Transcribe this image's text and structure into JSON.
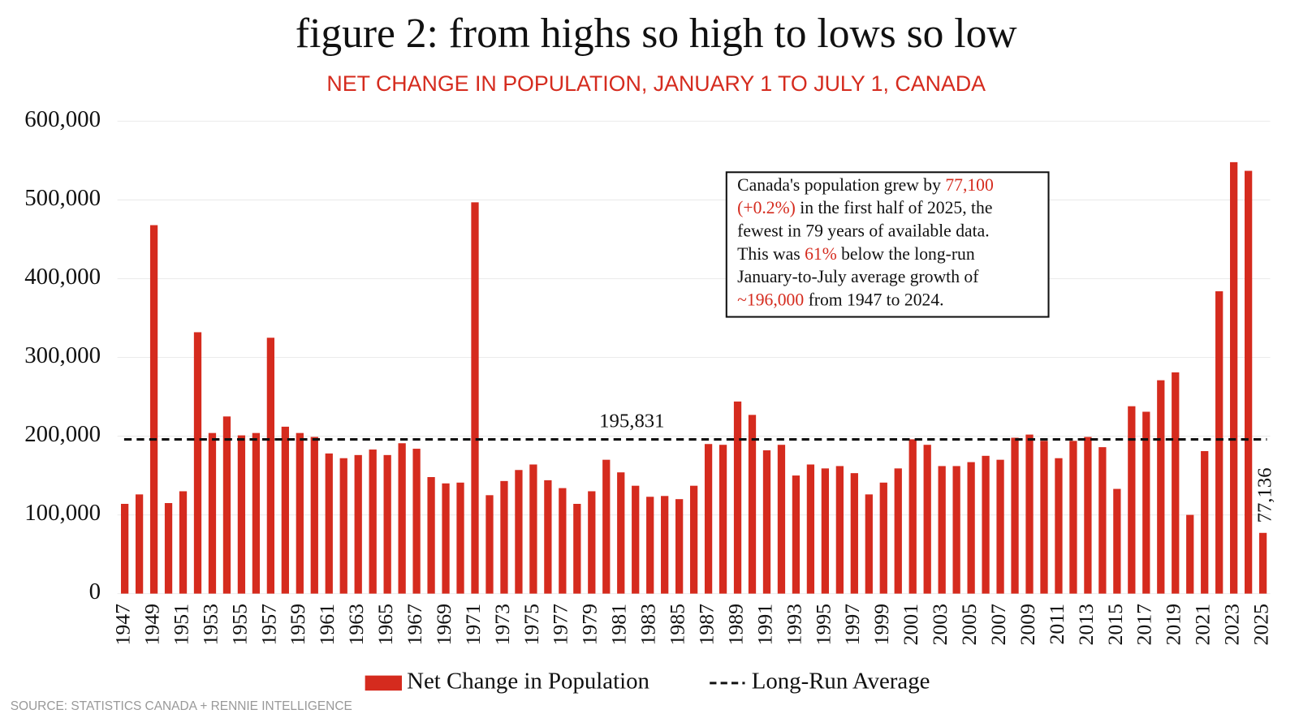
{
  "chart_data": {
    "type": "bar",
    "title": "figure 2: from highs so high to lows so low",
    "subtitle": "NET CHANGE IN POPULATION, JANUARY 1 TO JULY 1, CANADA",
    "source": "SOURCE: STATISTICS CANADA + RENNIE INTELLIGENCE",
    "categories": [
      "1947",
      null,
      "1949",
      null,
      "1951",
      null,
      "1953",
      null,
      "1955",
      null,
      "1957",
      null,
      "1959",
      null,
      "1961",
      null,
      "1963",
      null,
      "1965",
      null,
      "1967",
      null,
      "1969",
      null,
      "1971",
      null,
      "1973",
      null,
      "1975",
      null,
      "1977",
      null,
      "1979",
      null,
      "1981",
      null,
      "1983",
      null,
      "1985",
      null,
      "1987",
      null,
      "1989",
      null,
      "1991",
      null,
      "1993",
      null,
      "1995",
      null,
      "1997",
      null,
      "1999",
      null,
      "2001",
      null,
      "2003",
      null,
      "2005",
      null,
      "2007",
      null,
      "2009",
      null,
      "2011",
      null,
      "2013",
      null,
      "2015",
      null,
      "2017",
      null,
      "2019",
      null,
      "2021",
      null,
      "2023",
      null,
      "2025"
    ],
    "series": [
      {
        "name": "Net Change in Population",
        "color": "#d52b1e",
        "values": [
          114000,
          126000,
          468000,
          115000,
          130000,
          332000,
          204000,
          225000,
          201000,
          204000,
          325000,
          212000,
          204000,
          199000,
          178000,
          172000,
          176000,
          183000,
          176000,
          191000,
          184000,
          148000,
          140000,
          141000,
          497000,
          125000,
          143000,
          157000,
          164000,
          144000,
          134000,
          114000,
          130000,
          170000,
          154000,
          137000,
          123000,
          124000,
          120000,
          137000,
          190000,
          189000,
          244000,
          227000,
          182000,
          189000,
          150000,
          164000,
          159000,
          162000,
          153000,
          126000,
          141000,
          159000,
          196000,
          189000,
          162000,
          162000,
          167000,
          175000,
          170000,
          198000,
          202000,
          194000,
          172000,
          194000,
          199000,
          186000,
          133000,
          238000,
          231000,
          271000,
          281000,
          100000,
          181000,
          384000,
          548000,
          537000,
          77136
        ],
        "value_labels": [
          null,
          null,
          null,
          null,
          null,
          null,
          null,
          null,
          null,
          null,
          null,
          null,
          null,
          null,
          null,
          null,
          null,
          null,
          null,
          null,
          null,
          null,
          null,
          null,
          null,
          null,
          null,
          null,
          null,
          null,
          null,
          null,
          null,
          null,
          null,
          null,
          null,
          null,
          null,
          null,
          null,
          null,
          null,
          null,
          null,
          null,
          null,
          null,
          null,
          null,
          null,
          null,
          null,
          null,
          null,
          null,
          null,
          null,
          null,
          null,
          null,
          null,
          null,
          null,
          null,
          null,
          null,
          null,
          null,
          null,
          null,
          null,
          null,
          null,
          null,
          null,
          null,
          null,
          "77,136"
        ]
      }
    ],
    "average": {
      "name": "Long-Run Average",
      "value": 195831,
      "label": "195,831",
      "color": "#111111"
    },
    "ylim": [
      0,
      600000
    ],
    "yticks": [
      0,
      {
        "value": 100000,
        "label": "100,000"
      },
      {
        "value": 200000,
        "label": "200,000"
      },
      {
        "value": 300000,
        "label": "300,000"
      },
      {
        "value": 400000,
        "label": "400,000"
      },
      {
        "value": 500000,
        "label": "500,000"
      },
      {
        "value": 600000,
        "label": "600,000"
      }
    ],
    "grid": true,
    "legend": "bottom",
    "annotation": {
      "highlight_color": "#d52b1e",
      "lines": [
        [
          {
            "text": "Canada's population grew by "
          },
          {
            "text": "77,100",
            "highlight": true
          }
        ],
        [
          {
            "text": "(+0.2%)",
            "highlight": true
          },
          {
            "text": " in the first half of 2025, the"
          }
        ],
        [
          {
            "text": "fewest in 79 years of available data."
          }
        ],
        [
          {
            "text": "This was "
          },
          {
            "text": "61%",
            "highlight": true
          },
          {
            "text": " below the long-run"
          }
        ],
        [
          {
            "text": "January-to-July average growth of"
          }
        ],
        [
          {
            "text": "~196,000",
            "highlight": true
          },
          {
            "text": " from 1947 to 2024."
          }
        ]
      ]
    }
  }
}
